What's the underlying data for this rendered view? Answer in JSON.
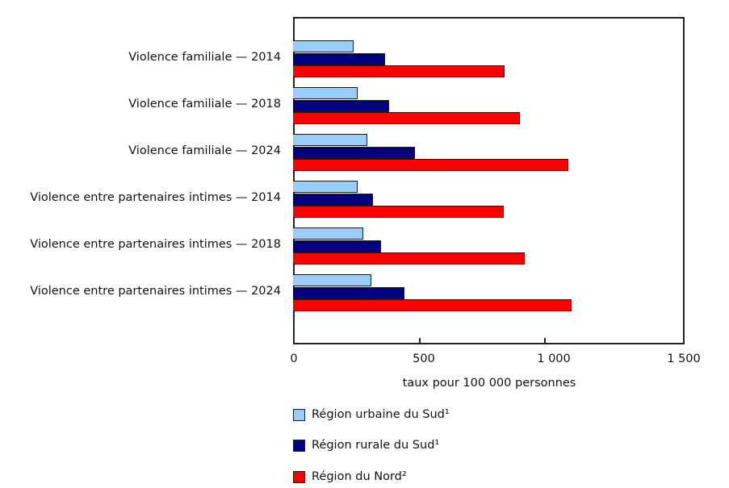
{
  "chart_data": {
    "type": "bar",
    "orientation": "horizontal",
    "title": "",
    "xlabel": "taux pour 100 000 personnes",
    "ylabel": "",
    "xlim": [
      0,
      1500
    ],
    "x_ticks": [
      "0",
      "500",
      "1 000",
      "1 500"
    ],
    "grid": false,
    "legend_position": "bottom",
    "categories": [
      "Violence familiale — 2014",
      "Violence familiale — 2018",
      "Violence familiale — 2024",
      "Violence entre partenaires intimes — 2014",
      "Violence entre partenaires intimes — 2018",
      "Violence entre partenaires intimes — 2024"
    ],
    "series": [
      {
        "name": "Région urbaine du Sud¹",
        "color": "#99ccff",
        "values": [
          232,
          248,
          285,
          248,
          268,
          300
        ]
      },
      {
        "name": "Région rurale du Sud¹",
        "color": "#000080",
        "values": [
          353,
          369,
          468,
          307,
          338,
          428
        ]
      },
      {
        "name": "Région du Nord²",
        "color": "#ff0000",
        "values": [
          809,
          868,
          1054,
          806,
          889,
          1066
        ]
      }
    ]
  },
  "labels": {
    "cat0": "Violence familiale — 2014",
    "cat1": "Violence familiale — 2018",
    "cat2": "Violence familiale — 2024",
    "cat3": "Violence entre partenaires intimes — 2014",
    "cat4": "Violence entre partenaires intimes — 2018",
    "cat5": "Violence entre partenaires intimes — 2024",
    "tick0": "0",
    "tick1": "500",
    "tick2": "1 000",
    "tick3": "1 500",
    "xtitle": "taux pour 100 000 personnes",
    "legend0": "Région urbaine du Sud¹",
    "legend1": "Région rurale du Sud¹",
    "legend2": "Région du Nord²"
  }
}
